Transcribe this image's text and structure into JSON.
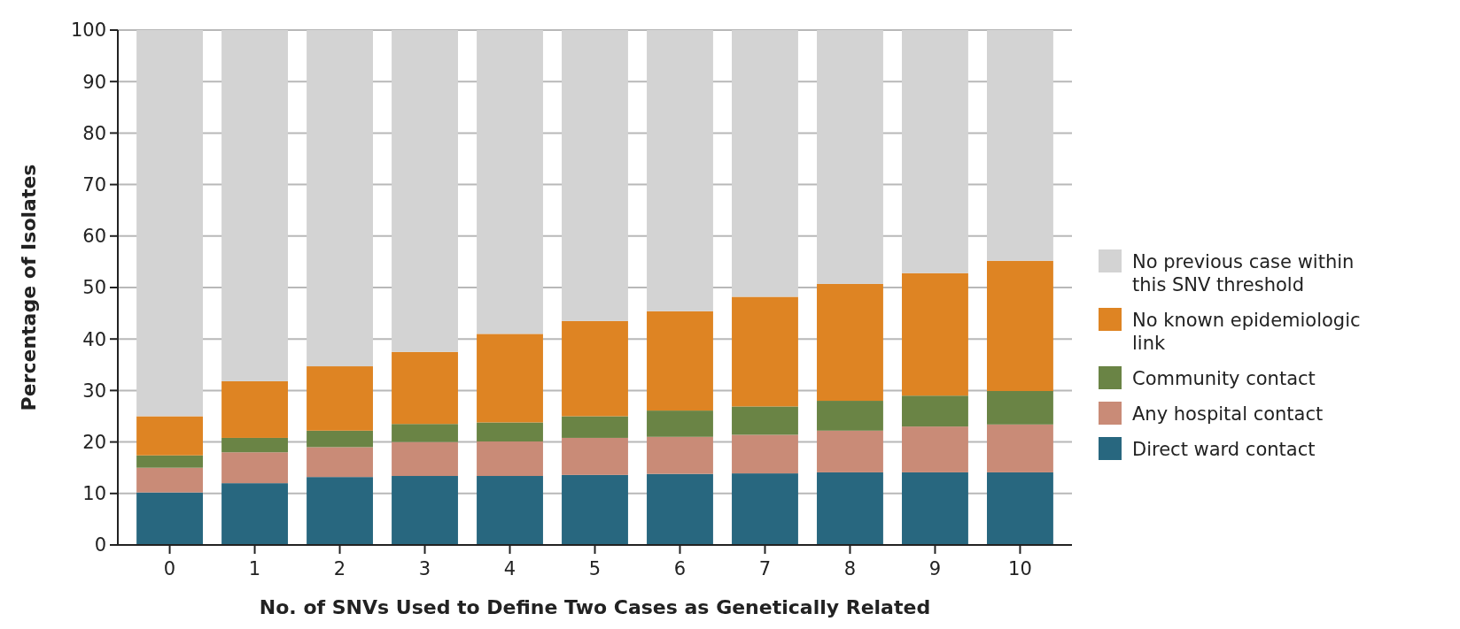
{
  "chart_data": {
    "type": "bar",
    "stacked": true,
    "xlabel": "No. of SNVs Used to Define Two Cases as Genetically Related",
    "ylabel": "Percentage of Isolates",
    "categories": [
      "0",
      "1",
      "2",
      "3",
      "4",
      "5",
      "6",
      "7",
      "8",
      "9",
      "10"
    ],
    "series": [
      {
        "name": "Direct ward contact",
        "color": "#28677f",
        "values": [
          10.2,
          12,
          13.2,
          13.4,
          13.4,
          13.6,
          13.8,
          13.9,
          14.1,
          14.1,
          14.1
        ]
      },
      {
        "name": "Any hospital contact",
        "color": "#c98b77",
        "values": [
          4.8,
          6,
          5.8,
          6.6,
          6.7,
          7.2,
          7.2,
          7.5,
          8.1,
          8.9,
          9.3
        ]
      },
      {
        "name": "Community contact",
        "color": "#6a8445",
        "values": [
          2.4,
          2.8,
          3.2,
          3.5,
          3.7,
          4.2,
          5.1,
          5.5,
          5.8,
          6,
          6.5
        ]
      },
      {
        "name": "No known epidemiologic link",
        "color": "#de8423",
        "values": [
          7.6,
          11,
          12.5,
          14,
          17.2,
          18.5,
          19.3,
          21.3,
          22.7,
          23.8,
          25.3
        ]
      },
      {
        "name": "No previous case within this SNV threshold",
        "color": "#d3d3d3",
        "values": [
          75,
          68.2,
          65.3,
          62.5,
          59,
          56.5,
          54.6,
          51.8,
          49.3,
          47.2,
          44.8
        ]
      }
    ],
    "ylim": [
      0,
      100
    ],
    "yticks": [
      0,
      10,
      20,
      30,
      40,
      50,
      60,
      70,
      80,
      90,
      100
    ],
    "grid": "y",
    "legend": "right"
  }
}
